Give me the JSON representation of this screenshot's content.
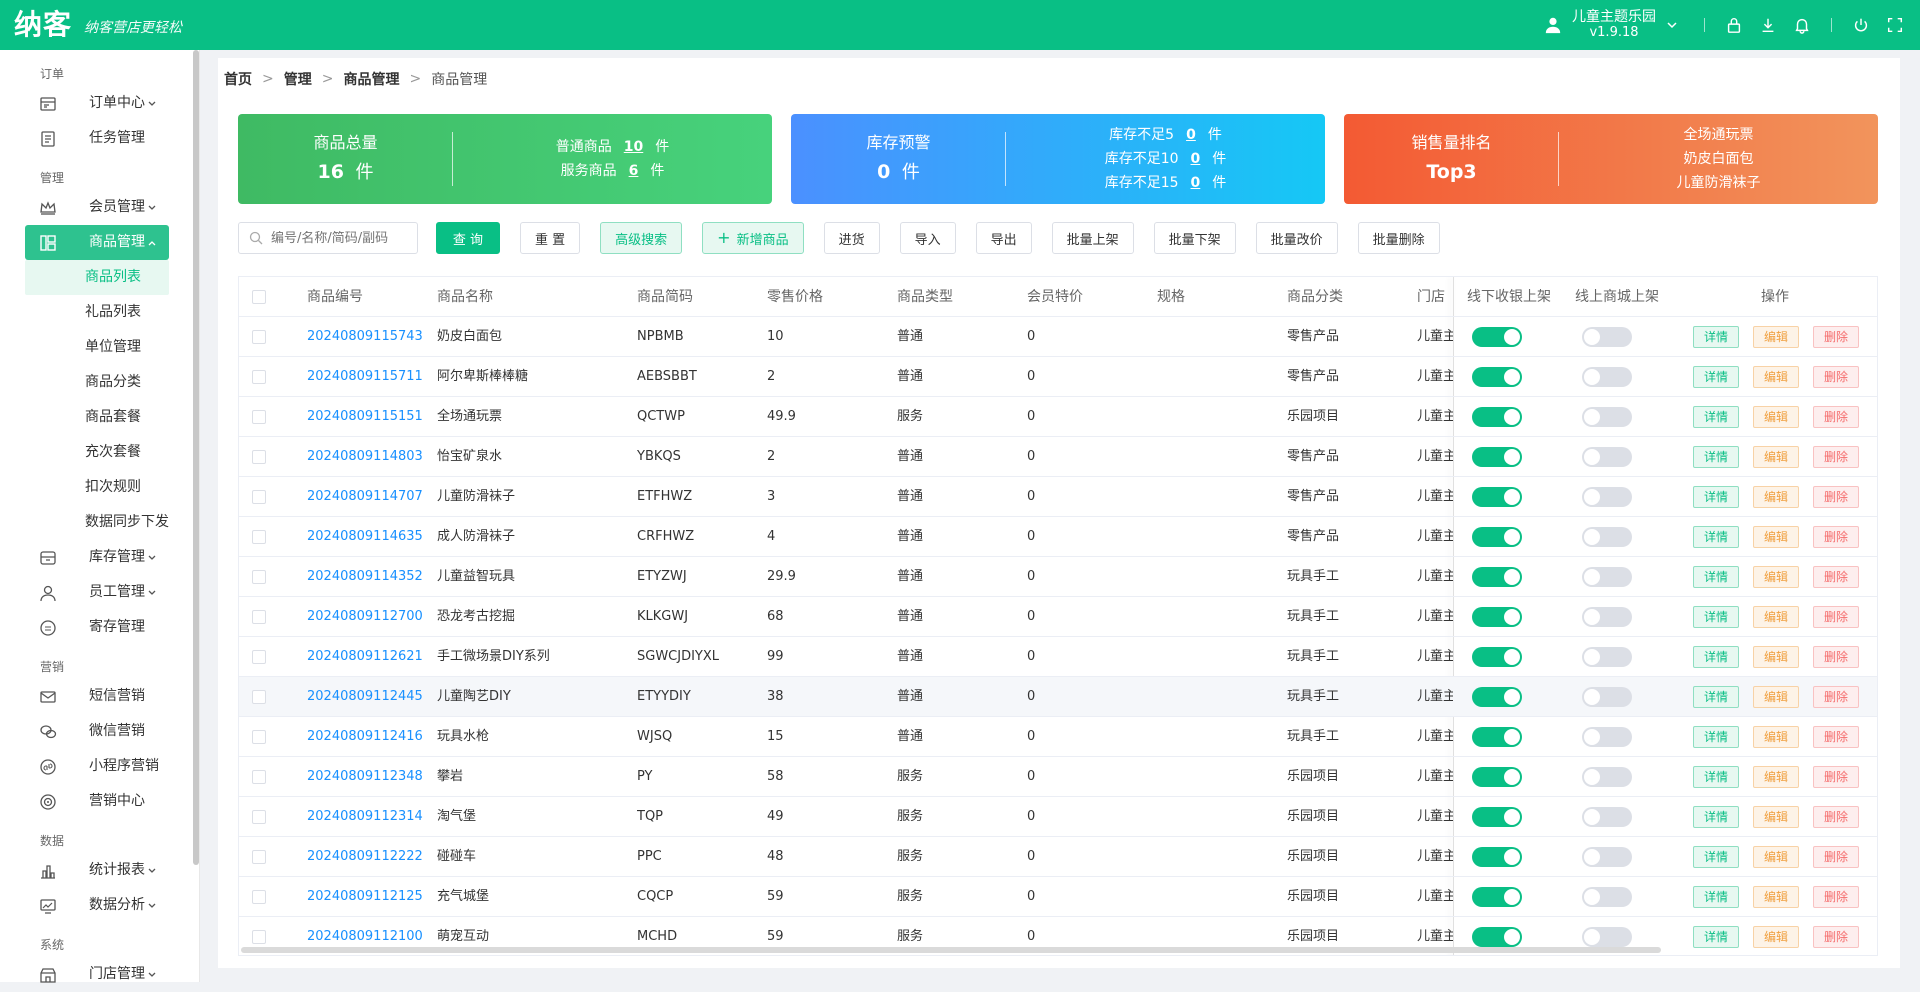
{
  "app": {
    "logo": "纳客",
    "slogan": "纳客营店更轻松",
    "store_name": "儿童主题乐园",
    "version": "v1.9.18"
  },
  "sidebar": {
    "groups": [
      {
        "label": "订单",
        "items": [
          {
            "label": "订单中心",
            "icon": "order-icon",
            "arrow": true
          },
          {
            "label": "任务管理",
            "icon": "task-icon",
            "arrow": false
          }
        ]
      },
      {
        "label": "管理",
        "items": [
          {
            "label": "会员管理",
            "icon": "crown-icon",
            "arrow": true
          },
          {
            "label": "商品管理",
            "icon": "goods-icon",
            "arrow": true,
            "active": true
          }
        ]
      },
      {
        "label": "营销",
        "items": [
          {
            "label": "短信营销",
            "icon": "mail-icon",
            "arrow": false
          },
          {
            "label": "微信营销",
            "icon": "wechat-icon",
            "arrow": false
          },
          {
            "label": "小程序营销",
            "icon": "miniapp-icon",
            "arrow": false
          },
          {
            "label": "营销中心",
            "icon": "target-icon",
            "arrow": false
          }
        ]
      },
      {
        "label": "数据",
        "items": [
          {
            "label": "统计报表",
            "icon": "chart-icon",
            "arrow": true
          },
          {
            "label": "数据分析",
            "icon": "analysis-icon",
            "arrow": true
          }
        ]
      },
      {
        "label": "系统",
        "items": [
          {
            "label": "门店管理",
            "icon": "store-icon",
            "arrow": true
          }
        ]
      }
    ],
    "goods_sub": [
      "商品列表",
      "礼品列表",
      "单位管理",
      "商品分类",
      "商品套餐",
      "充次套餐",
      "扣次规则",
      "数据同步下发"
    ],
    "after_goods": [
      {
        "label": "库存管理",
        "icon": "stock-icon",
        "arrow": true
      },
      {
        "label": "员工管理",
        "icon": "user-icon",
        "arrow": true
      },
      {
        "label": "寄存管理",
        "icon": "deposit-icon",
        "arrow": false
      }
    ]
  },
  "breadcrumb": [
    "首页",
    "管理",
    "商品管理",
    "商品管理"
  ],
  "cards": {
    "total": {
      "title": "商品总量",
      "value": "16",
      "unit": "件",
      "normal_label": "普通商品",
      "normal_value": "10",
      "service_label": "服务商品",
      "service_value": "6"
    },
    "stock": {
      "title": "库存预警",
      "value": "0",
      "unit": "件",
      "lines": [
        {
          "label": "库存不足5",
          "value": "0"
        },
        {
          "label": "库存不足10",
          "value": "0"
        },
        {
          "label": "库存不足15",
          "value": "0"
        }
      ]
    },
    "sales": {
      "title": "销售量排名",
      "value": "Top3",
      "items": [
        "全场通玩票",
        "奶皮白面包",
        "儿童防滑袜子"
      ]
    }
  },
  "toolbar": {
    "search_placeholder": "编号/名称/简码/副码",
    "query": "查 询",
    "reset": "重 置",
    "advanced": "高级搜索",
    "add": "新增商品",
    "buttons": [
      "进货",
      "导入",
      "导出",
      "批量上架",
      "批量下架",
      "批量改价",
      "批量删除"
    ]
  },
  "table": {
    "columns": [
      "商品编号",
      "商品名称",
      "商品简码",
      "零售价格",
      "商品类型",
      "会员特价",
      "规格",
      "商品分类",
      "门店",
      "线下收银上架",
      "线上商城上架",
      "操作"
    ],
    "ops": {
      "detail": "详情",
      "edit": "编辑",
      "delete": "删除"
    },
    "rows": [
      {
        "code": "20240809115743",
        "name": "奶皮白面包",
        "abbr": "NPBMB",
        "price": "10",
        "type": "普通",
        "vip": "0",
        "spec": "",
        "cat": "零售产品",
        "store": "儿童主题乐园",
        "offline": true,
        "online": false
      },
      {
        "code": "20240809115711",
        "name": "阿尔卑斯棒棒糖",
        "abbr": "AEBSBBT",
        "price": "2",
        "type": "普通",
        "vip": "0",
        "spec": "",
        "cat": "零售产品",
        "store": "儿童主题乐园",
        "offline": true,
        "online": false
      },
      {
        "code": "20240809115151",
        "name": "全场通玩票",
        "abbr": "QCTWP",
        "price": "49.9",
        "type": "服务",
        "vip": "0",
        "spec": "",
        "cat": "乐园项目",
        "store": "儿童主题乐园",
        "offline": true,
        "online": false
      },
      {
        "code": "20240809114803",
        "name": "怡宝矿泉水",
        "abbr": "YBKQS",
        "price": "2",
        "type": "普通",
        "vip": "0",
        "spec": "",
        "cat": "零售产品",
        "store": "儿童主题乐园",
        "offline": true,
        "online": false
      },
      {
        "code": "20240809114707",
        "name": "儿童防滑袜子",
        "abbr": "ETFHWZ",
        "price": "3",
        "type": "普通",
        "vip": "0",
        "spec": "",
        "cat": "零售产品",
        "store": "儿童主题乐园",
        "offline": true,
        "online": false
      },
      {
        "code": "20240809114635",
        "name": "成人防滑袜子",
        "abbr": "CRFHWZ",
        "price": "4",
        "type": "普通",
        "vip": "0",
        "spec": "",
        "cat": "零售产品",
        "store": "儿童主题乐园",
        "offline": true,
        "online": false
      },
      {
        "code": "20240809114352",
        "name": "儿童益智玩具",
        "abbr": "ETYZWJ",
        "price": "29.9",
        "type": "普通",
        "vip": "0",
        "spec": "",
        "cat": "玩具手工",
        "store": "儿童主题乐园",
        "offline": true,
        "online": false
      },
      {
        "code": "20240809112700",
        "name": "恐龙考古挖掘",
        "abbr": "KLKGWJ",
        "price": "68",
        "type": "普通",
        "vip": "0",
        "spec": "",
        "cat": "玩具手工",
        "store": "儿童主题乐园",
        "offline": true,
        "online": false
      },
      {
        "code": "20240809112621",
        "name": "手工微场景DIY系列",
        "abbr": "SGWCJDIYXL",
        "price": "99",
        "type": "普通",
        "vip": "0",
        "spec": "",
        "cat": "玩具手工",
        "store": "儿童主题乐园",
        "offline": true,
        "online": false
      },
      {
        "code": "20240809112445",
        "name": "儿童陶艺DIY",
        "abbr": "ETYYDIY",
        "price": "38",
        "type": "普通",
        "vip": "0",
        "spec": "",
        "cat": "玩具手工",
        "store": "儿童主题乐园",
        "offline": true,
        "online": false,
        "hl": true
      },
      {
        "code": "20240809112416",
        "name": "玩具水枪",
        "abbr": "WJSQ",
        "price": "15",
        "type": "普通",
        "vip": "0",
        "spec": "",
        "cat": "玩具手工",
        "store": "儿童主题乐园",
        "offline": true,
        "online": false
      },
      {
        "code": "20240809112348",
        "name": "攀岩",
        "abbr": "PY",
        "price": "58",
        "type": "服务",
        "vip": "0",
        "spec": "",
        "cat": "乐园项目",
        "store": "儿童主题乐园",
        "offline": true,
        "online": false
      },
      {
        "code": "20240809112314",
        "name": "淘气堡",
        "abbr": "TQP",
        "price": "49",
        "type": "服务",
        "vip": "0",
        "spec": "",
        "cat": "乐园项目",
        "store": "儿童主题乐园",
        "offline": true,
        "online": false
      },
      {
        "code": "20240809112222",
        "name": "碰碰车",
        "abbr": "PPC",
        "price": "48",
        "type": "服务",
        "vip": "0",
        "spec": "",
        "cat": "乐园项目",
        "store": "儿童主题乐园",
        "offline": true,
        "online": false
      },
      {
        "code": "20240809112125",
        "name": "充气城堡",
        "abbr": "CQCP",
        "price": "59",
        "type": "服务",
        "vip": "0",
        "spec": "",
        "cat": "乐园项目",
        "store": "儿童主题乐园",
        "offline": true,
        "online": false
      },
      {
        "code": "20240809112100",
        "name": "萌宠互动",
        "abbr": "MCHD",
        "price": "59",
        "type": "服务",
        "vip": "0",
        "spec": "",
        "cat": "乐园项目",
        "store": "儿童主题乐园",
        "offline": true,
        "online": false
      }
    ]
  },
  "colors": {
    "brand": "#09bf85",
    "link": "#1890ff"
  }
}
